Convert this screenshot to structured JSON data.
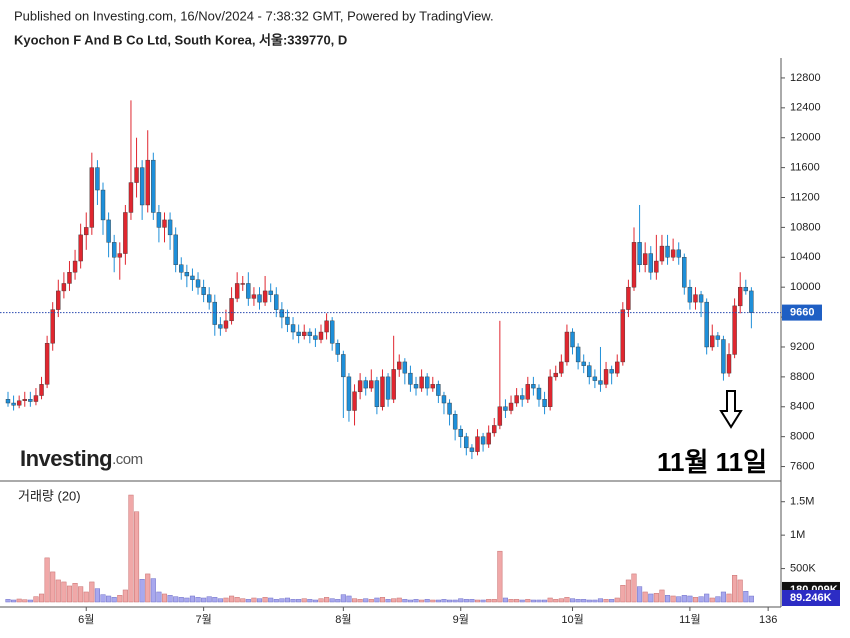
{
  "header": {
    "line1": "Published on Investing.com, 16/Nov/2024 - 7:38:32 GMT, Powered by TradingView.",
    "line2": "Kyochon F And B Co Ltd, South Korea, 서울:339770, D"
  },
  "chart_data": [
    {
      "type": "candlestick",
      "up_color": "#e0262f",
      "down_color": "#1e8fd9",
      "logo": "Investing",
      "logo_suffix": ".com",
      "annotation": "11월 11일",
      "ylim": [
        7420,
        13040
      ],
      "yticks": [
        7600,
        8000,
        8400,
        8800,
        9200,
        9600,
        10000,
        10400,
        10800,
        11200,
        11600,
        12000,
        12400,
        12800
      ],
      "xlim": [
        -1.43,
        138.3
      ],
      "xticks": [
        {
          "value": 14,
          "label": "6월"
        },
        {
          "value": 35,
          "label": "7월"
        },
        {
          "value": 60,
          "label": "8월"
        },
        {
          "value": 81,
          "label": "9월"
        },
        {
          "value": 101,
          "label": "10월"
        },
        {
          "value": 122,
          "label": "11월"
        },
        136
      ],
      "open": [
        8500,
        8450,
        8420,
        8480,
        8500,
        8470,
        8550,
        8700,
        9250,
        9700,
        9950,
        10050,
        10200,
        10350,
        10700,
        10800,
        11600,
        11300,
        10900,
        10600,
        10400,
        10450,
        11000,
        11400,
        11600,
        11100,
        11700,
        11000,
        10800,
        10900,
        10700,
        10300,
        10200,
        10150,
        10100,
        10000,
        9900,
        9800,
        9500,
        9450,
        9550,
        9850,
        10050,
        10050,
        9850,
        9900,
        9800,
        9950,
        9900,
        9700,
        9600,
        9500,
        9400,
        9350,
        9400,
        9350,
        9300,
        9400,
        9550,
        9250,
        9100,
        8800,
        8350,
        8600,
        8750,
        8650,
        8750,
        8400,
        8800,
        8500,
        8900,
        9000,
        8850,
        8700,
        8650,
        8800,
        8650,
        8700,
        8550,
        8450,
        8300,
        8100,
        8000,
        7850,
        7800,
        8000,
        7900,
        8050,
        8150,
        8400,
        8350,
        8450,
        8550,
        8500,
        8700,
        8650,
        8500,
        8400,
        8800,
        8850,
        9000,
        9400,
        9200,
        9000,
        8950,
        8800,
        8750,
        8700,
        8900,
        8850,
        9000,
        9700,
        10000,
        10600,
        10300,
        10450,
        10200,
        10350,
        10550,
        10400,
        10500,
        10400,
        10000,
        9800,
        9900,
        9800,
        9200,
        9350,
        9300,
        8850,
        9100,
        9750,
        10000,
        9950
      ],
      "high": [
        8600,
        8550,
        8550,
        8600,
        8600,
        8650,
        8800,
        9350,
        9800,
        10100,
        10200,
        10350,
        10500,
        10850,
        11000,
        11800,
        11700,
        11400,
        11000,
        10700,
        10600,
        11100,
        12500,
        12000,
        11700,
        12100,
        11800,
        11100,
        11000,
        11000,
        10800,
        10400,
        10300,
        10250,
        10200,
        10100,
        10000,
        9900,
        9600,
        9700,
        10000,
        10200,
        10150,
        10200,
        10000,
        10000,
        10150,
        10050,
        10000,
        9800,
        9700,
        9600,
        9500,
        9500,
        9450,
        9450,
        9500,
        9650,
        9600,
        9300,
        9150,
        8850,
        8700,
        8850,
        8800,
        8900,
        8800,
        8900,
        8850,
        9350,
        9100,
        9050,
        8950,
        8800,
        8900,
        8850,
        8800,
        8750,
        8600,
        8500,
        8350,
        8150,
        8050,
        7900,
        8100,
        8050,
        8150,
        8250,
        9550,
        8500,
        8550,
        8650,
        8650,
        8800,
        8800,
        8700,
        8600,
        8900,
        8950,
        9100,
        9500,
        9450,
        9250,
        9100,
        9000,
        8900,
        9200,
        9000,
        8950,
        9100,
        9800,
        10100,
        10800,
        11100,
        10600,
        10550,
        10700,
        10700,
        10700,
        10650,
        10600,
        10450,
        10100,
        10000,
        9950,
        9850,
        9500,
        9400,
        9350,
        9250,
        9850,
        10200,
        10100,
        10000
      ],
      "low": [
        8400,
        8350,
        8380,
        8400,
        8400,
        8420,
        8500,
        8650,
        9150,
        9600,
        9850,
        9950,
        10100,
        10250,
        10500,
        10700,
        11100,
        10700,
        10400,
        10200,
        10100,
        10300,
        10900,
        11200,
        10900,
        11000,
        10900,
        10600,
        10600,
        10500,
        10200,
        10100,
        10000,
        9950,
        9900,
        9800,
        9700,
        9350,
        9350,
        9400,
        9500,
        9800,
        9950,
        9750,
        9750,
        9700,
        9750,
        9800,
        9600,
        9450,
        9400,
        9300,
        9250,
        9300,
        9250,
        9200,
        9250,
        9300,
        9150,
        9000,
        8250,
        8200,
        8150,
        8500,
        8550,
        8600,
        8300,
        8350,
        8400,
        8450,
        8800,
        8700,
        8600,
        8550,
        8600,
        8550,
        8600,
        8450,
        8300,
        8150,
        7950,
        7850,
        7750,
        7700,
        7750,
        7800,
        7850,
        8000,
        8100,
        8250,
        8300,
        8400,
        8400,
        8450,
        8550,
        8400,
        8300,
        8350,
        8750,
        8800,
        8950,
        9100,
        8900,
        8850,
        8700,
        8650,
        8600,
        8650,
        8700,
        8800,
        8950,
        9600,
        9950,
        10200,
        10200,
        10100,
        10100,
        10300,
        10300,
        10350,
        10300,
        9900,
        9700,
        9700,
        9600,
        9100,
        9150,
        9200,
        8750,
        8800,
        9050,
        9650,
        9900,
        9450
      ],
      "close": [
        8450,
        8420,
        8480,
        8500,
        8470,
        8550,
        8700,
        9250,
        9700,
        9950,
        10050,
        10200,
        10350,
        10700,
        10800,
        11600,
        11300,
        10900,
        10600,
        10400,
        10450,
        11000,
        11400,
        11600,
        11100,
        11700,
        11000,
        10800,
        10900,
        10700,
        10300,
        10200,
        10150,
        10100,
        10000,
        9900,
        9800,
        9500,
        9450,
        9550,
        9850,
        10050,
        10050,
        9850,
        9900,
        9800,
        9950,
        9900,
        9700,
        9600,
        9500,
        9400,
        9350,
        9400,
        9350,
        9300,
        9400,
        9550,
        9250,
        9100,
        8800,
        8350,
        8600,
        8750,
        8650,
        8750,
        8400,
        8800,
        8500,
        8900,
        9000,
        8850,
        8700,
        8650,
        8800,
        8650,
        8700,
        8550,
        8450,
        8300,
        8100,
        8000,
        7850,
        7800,
        8000,
        7900,
        8050,
        8150,
        8400,
        8350,
        8450,
        8550,
        8500,
        8700,
        8650,
        8500,
        8400,
        8800,
        8850,
        9000,
        9400,
        9200,
        9000,
        8950,
        8800,
        8750,
        8700,
        8900,
        8850,
        9000,
        9700,
        10000,
        10600,
        10300,
        10450,
        10200,
        10350,
        10550,
        10400,
        10500,
        10400,
        10000,
        9800,
        9900,
        9800,
        9200,
        9350,
        9300,
        8850,
        9100,
        9750,
        10000,
        9950,
        9660
      ]
    },
    {
      "type": "bar",
      "title": "거래량 (20)",
      "up_color": "#f0a8a8",
      "down_color": "#a8a8ee",
      "ylim": [
        0,
        1780000
      ],
      "yticks": [
        {
          "value": 500000,
          "label": "500K"
        },
        {
          "value": 1000000,
          "label": "1M"
        },
        {
          "value": 1500000,
          "label": "1.5M"
        }
      ],
      "annotations": [
        {
          "value": 180009,
          "label": "180.009K"
        },
        {
          "value": 89246,
          "label": "89.246K"
        }
      ],
      "values": [
        40000,
        30000,
        45000,
        35000,
        30000,
        80000,
        120000,
        660000,
        450000,
        330000,
        300000,
        240000,
        280000,
        230000,
        150000,
        300000,
        200000,
        110000,
        90000,
        70000,
        100000,
        180000,
        1600000,
        1350000,
        340000,
        420000,
        350000,
        150000,
        120000,
        100000,
        80000,
        70000,
        60000,
        90000,
        70000,
        60000,
        80000,
        70000,
        50000,
        60000,
        90000,
        70000,
        50000,
        40000,
        60000,
        50000,
        70000,
        60000,
        40000,
        50000,
        60000,
        40000,
        40000,
        50000,
        40000,
        30000,
        50000,
        70000,
        50000,
        40000,
        110000,
        90000,
        50000,
        40000,
        50000,
        40000,
        60000,
        70000,
        40000,
        50000,
        60000,
        40000,
        30000,
        40000,
        30000,
        40000,
        30000,
        30000,
        40000,
        30000,
        30000,
        50000,
        40000,
        40000,
        30000,
        30000,
        40000,
        40000,
        760000,
        60000,
        40000,
        40000,
        30000,
        40000,
        30000,
        30000,
        30000,
        60000,
        40000,
        50000,
        70000,
        50000,
        40000,
        40000,
        30000,
        30000,
        50000,
        40000,
        40000,
        60000,
        250000,
        330000,
        420000,
        230000,
        150000,
        120000,
        130000,
        180000,
        100000,
        90000,
        80000,
        100000,
        90000,
        70000,
        80000,
        120000,
        60000,
        80000,
        150000,
        120000,
        400000,
        330000,
        160000,
        89246
      ]
    }
  ]
}
